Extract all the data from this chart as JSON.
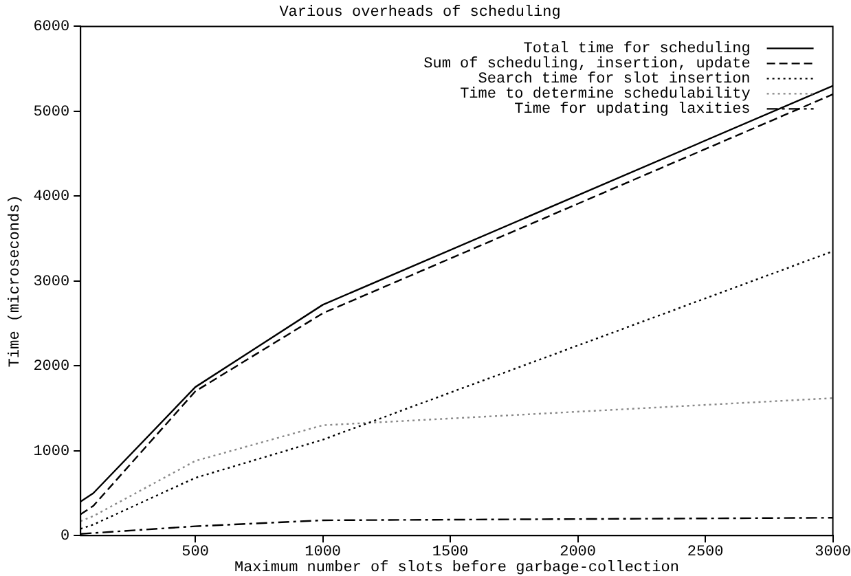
{
  "chart_data": {
    "type": "line",
    "title": "Various overheads of scheduling",
    "xlabel": "Maximum number of slots before garbage-collection",
    "ylabel": "Time (microseconds)",
    "x": [
      50,
      100,
      500,
      1000,
      3000
    ],
    "xlim": [
      50,
      3000
    ],
    "xticks": [
      500,
      1000,
      1500,
      2000,
      2500,
      3000
    ],
    "ylim": [
      0,
      6000
    ],
    "yticks": [
      0,
      1000,
      2000,
      3000,
      4000,
      5000,
      6000
    ],
    "grid": false,
    "legend": "top right",
    "marker": "none",
    "series": [
      {
        "name": "Total time for scheduling",
        "color": "#000000",
        "line_style": "solid",
        "values": [
          400,
          500,
          1750,
          2720,
          5300
        ]
      },
      {
        "name": "Sum of scheduling, insertion, update",
        "color": "#000000",
        "line_style": "dashed",
        "values": [
          250,
          350,
          1700,
          2620,
          5200
        ]
      },
      {
        "name": "Search time for slot insertion",
        "color": "#000000",
        "line_style": "dotted",
        "values": [
          80,
          130,
          680,
          1130,
          3350
        ]
      },
      {
        "name": "Time to determine schedulability",
        "color": "#888888",
        "line_style": "dotted",
        "values": [
          170,
          230,
          880,
          1300,
          1620
        ]
      },
      {
        "name": "Time for updating laxities",
        "color": "#000000",
        "line_style": "dashdot",
        "values": [
          20,
          30,
          110,
          180,
          210
        ]
      }
    ]
  }
}
